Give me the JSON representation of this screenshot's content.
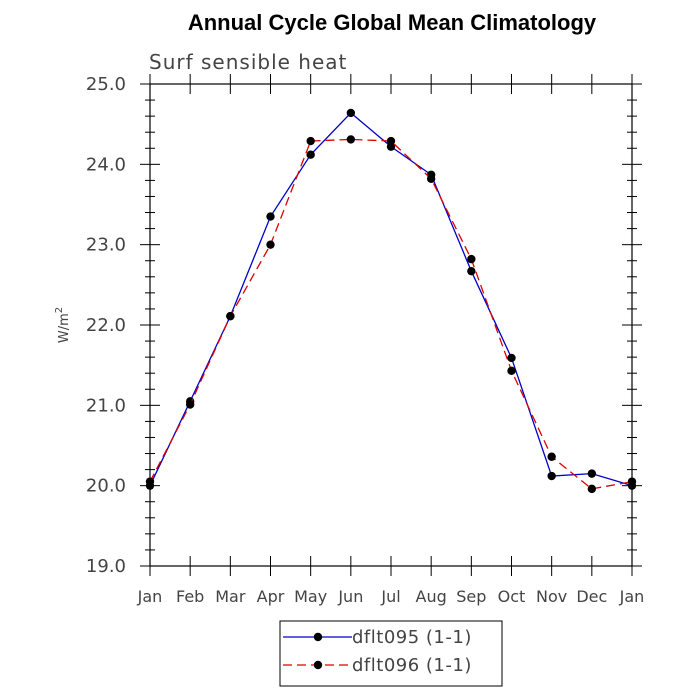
{
  "chart_data": {
    "type": "line",
    "title": "Annual Cycle Global Mean Climatology",
    "subtitle": "Surf sensible heat",
    "ylabel": "W/m",
    "ylabel_superscript": "2",
    "xlabel": "",
    "ylim": [
      19.0,
      25.0
    ],
    "yticks": [
      "19.0",
      "20.0",
      "21.0",
      "22.0",
      "23.0",
      "24.0",
      "25.0"
    ],
    "categories": [
      "Jan",
      "Feb",
      "Mar",
      "Apr",
      "May",
      "Jun",
      "Jul",
      "Aug",
      "Sep",
      "Oct",
      "Nov",
      "Dec",
      "Jan"
    ],
    "grid": false,
    "legend_position": "bottom-center",
    "series": [
      {
        "name": "dflt095 (1-1)",
        "color": "#0000cc",
        "dash": "solid",
        "marker": "filled-circle",
        "values": [
          20.0,
          21.05,
          22.11,
          23.35,
          24.12,
          24.64,
          24.22,
          23.87,
          22.67,
          21.59,
          20.12,
          20.15,
          20.0
        ]
      },
      {
        "name": "dflt096 (1-1)",
        "color": "#dd0000",
        "dash": "dashed",
        "marker": "filled-circle",
        "values": [
          20.05,
          21.01,
          22.11,
          23.0,
          24.29,
          24.31,
          24.29,
          23.82,
          22.82,
          21.43,
          20.36,
          19.96,
          20.05
        ]
      }
    ]
  }
}
